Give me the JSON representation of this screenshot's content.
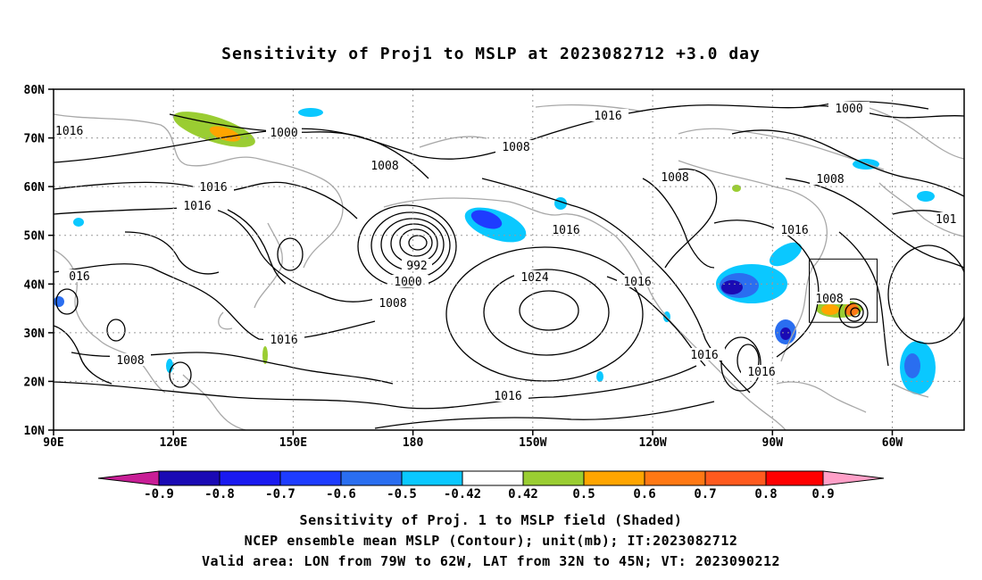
{
  "title": "Sensitivity of Proj1 to MSLP at 2023082712 +3.0 day",
  "captions": [
    "Sensitivity of Proj. 1 to MSLP field (Shaded)",
    "NCEP ensemble mean MSLP (Contour); unit(mb); IT:2023082712",
    "Valid area: LON from 79W to 62W, LAT from 32N to 45N; VT: 2023090212"
  ],
  "map": {
    "lat_ticks": [
      "80N",
      "70N",
      "60N",
      "50N",
      "40N",
      "30N",
      "20N",
      "10N"
    ],
    "lon_ticks": [
      "90E",
      "120E",
      "150E",
      "180",
      "150W",
      "120W",
      "90W",
      "60W"
    ],
    "contour_labels": [
      "1000",
      "1000",
      "1008",
      "1008",
      "1008",
      "1016",
      "1016",
      "1016",
      "1016",
      "992",
      "1000",
      "1008",
      "1024",
      "1016",
      "1016",
      "1016",
      "1016",
      "1008",
      "1008",
      "1016",
      "101",
      "1016",
      "016",
      "1016",
      "1008"
    ],
    "valid_box": {
      "lon": [
        "79W",
        "62W"
      ],
      "lat": [
        "32N",
        "45N"
      ]
    }
  },
  "colorbar": {
    "labels": [
      "-0.9",
      "-0.8",
      "-0.7",
      "-0.6",
      "-0.5",
      "-0.42",
      "0.42",
      "0.5",
      "0.6",
      "0.7",
      "0.8",
      "0.9"
    ],
    "colors": [
      "#1a0ab4",
      "#1a1af0",
      "#1e3cff",
      "#2a6ef0",
      "#0ac8ff",
      "#ffffff",
      "#9acd32",
      "#ffa500",
      "#ff7814",
      "#ff5a1e",
      "#ff0000"
    ],
    "low_end_color": "#c81e96",
    "high_end_color": "#ffa0c8"
  }
}
